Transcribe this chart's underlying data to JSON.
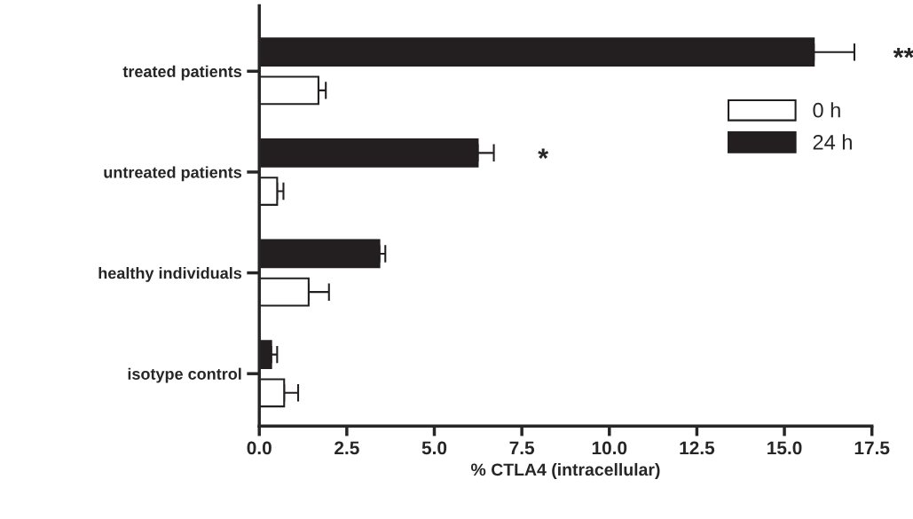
{
  "chart_data": {
    "type": "bar",
    "orientation": "horizontal",
    "xlabel": "% CTLA4 (intracellular)",
    "categories": [
      "treated patients",
      "untreated patients",
      "healthy individuals",
      "isotype control"
    ],
    "series": [
      {
        "name": "24 h",
        "color": "#231f20",
        "values": [
          15.84,
          6.24,
          3.43,
          0.34
        ],
        "errors": [
          [
            15.84,
            17.0
          ],
          [
            6.24,
            6.7
          ],
          [
            3.43,
            3.6
          ],
          [
            0.34,
            0.51
          ]
        ]
      },
      {
        "name": "0 h",
        "color": "#ffffff",
        "values": [
          1.69,
          0.51,
          1.41,
          0.71
        ],
        "errors": [
          [
            1.69,
            1.9
          ],
          [
            0.51,
            0.69
          ],
          [
            1.41,
            1.99
          ],
          [
            0.71,
            1.11
          ]
        ]
      }
    ],
    "xlim": [
      0,
      17.5
    ],
    "xticks": [
      {
        "value": 0,
        "label": "0.0"
      },
      {
        "value": 2.5,
        "label": "2.5"
      },
      {
        "value": 5,
        "label": "5.0"
      },
      {
        "value": 7.5,
        "label": "7.5"
      },
      {
        "value": 10,
        "label": "10.0"
      },
      {
        "value": 12.5,
        "label": "12.5"
      },
      {
        "value": 15,
        "label": "15.0"
      },
      {
        "value": 17.5,
        "label": "17.5"
      }
    ],
    "annotations": [
      "**",
      "*"
    ],
    "legend": "top right",
    "grid": false
  }
}
